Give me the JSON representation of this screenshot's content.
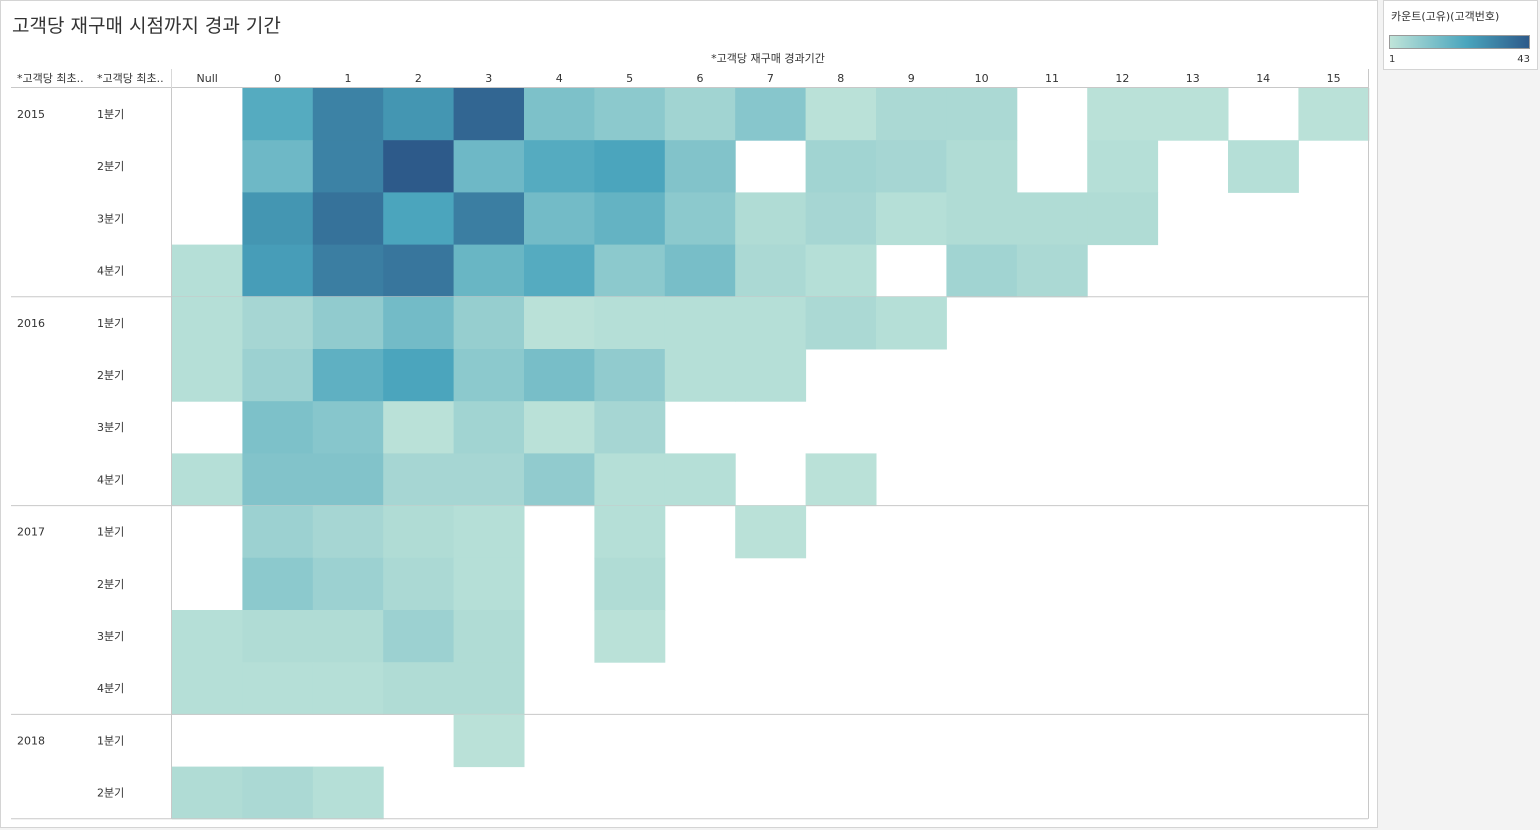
{
  "title": "고객당 재구매 시점까지 경과 기간",
  "legend": {
    "title": "카운트(고유)(고객번호)",
    "min_label": "1",
    "max_label": "43",
    "color_low": "#bfe4d9",
    "color_mid": "#4aa5bd",
    "color_high": "#2d5a8a"
  },
  "chart_data": {
    "type": "heatmap",
    "title": "고객당 재구매 시점까지 경과 기간",
    "column_axis_label": "*고객당 재구매 경과기간",
    "row_header_labels": [
      "*고객당 최초..",
      "*고객당 최초.."
    ],
    "columns": [
      "Null",
      "0",
      "1",
      "2",
      "3",
      "4",
      "5",
      "6",
      "7",
      "8",
      "9",
      "10",
      "11",
      "12",
      "13",
      "14",
      "15"
    ],
    "value_range": [
      1,
      43
    ],
    "groups": [
      {
        "year": "2015",
        "rows": [
          {
            "label": "1분기",
            "values": [
              null,
              22,
              33,
              28,
              40,
              14,
              11,
              7,
              12,
              2,
              5,
              5,
              null,
              2,
              2,
              null,
              2
            ]
          },
          {
            "label": "2분기",
            "values": [
              null,
              17,
              33,
              43,
              17,
              22,
              24,
              13,
              null,
              7,
              6,
              4,
              null,
              3,
              null,
              3,
              null
            ]
          },
          {
            "label": "3분기",
            "values": [
              null,
              28,
              37,
              24,
              34,
              16,
              19,
              11,
              4,
              6,
              3,
              4,
              4,
              4,
              null,
              null,
              null
            ]
          },
          {
            "label": "4분기",
            "values": [
              3,
              26,
              34,
              36,
              18,
              22,
              11,
              15,
              5,
              3,
              null,
              7,
              5,
              null,
              null,
              null,
              null
            ]
          }
        ]
      },
      {
        "year": "2016",
        "rows": [
          {
            "label": "1분기",
            "values": [
              3,
              6,
              10,
              16,
              9,
              2,
              3,
              3,
              3,
              5,
              3,
              null,
              null,
              null,
              null,
              null,
              null
            ]
          },
          {
            "label": "2분기",
            "values": [
              3,
              8,
              20,
              24,
              11,
              15,
              10,
              3,
              3,
              null,
              null,
              null,
              null,
              null,
              null,
              null,
              null
            ]
          },
          {
            "label": "3분기",
            "values": [
              null,
              14,
              12,
              2,
              7,
              2,
              6,
              null,
              null,
              null,
              null,
              null,
              null,
              null,
              null,
              null,
              null
            ]
          },
          {
            "label": "4분기",
            "values": [
              3,
              13,
              13,
              6,
              6,
              10,
              3,
              3,
              null,
              2,
              null,
              null,
              null,
              null,
              null,
              null,
              null
            ]
          }
        ]
      },
      {
        "year": "2017",
        "rows": [
          {
            "label": "1분기",
            "values": [
              null,
              8,
              6,
              4,
              3,
              null,
              3,
              null,
              2,
              null,
              null,
              null,
              null,
              null,
              null,
              null,
              null
            ]
          },
          {
            "label": "2분기",
            "values": [
              null,
              11,
              8,
              5,
              3,
              null,
              4,
              null,
              null,
              null,
              null,
              null,
              null,
              null,
              null,
              null,
              null
            ]
          },
          {
            "label": "3분기",
            "values": [
              3,
              4,
              4,
              8,
              4,
              null,
              2,
              null,
              null,
              null,
              null,
              null,
              null,
              null,
              null,
              null,
              null
            ]
          },
          {
            "label": "4분기",
            "values": [
              3,
              3,
              3,
              4,
              4,
              null,
              null,
              null,
              null,
              null,
              null,
              null,
              null,
              null,
              null,
              null,
              null
            ]
          }
        ]
      },
      {
        "year": "2018",
        "rows": [
          {
            "label": "1분기",
            "values": [
              null,
              null,
              null,
              null,
              2,
              null,
              null,
              null,
              null,
              null,
              null,
              null,
              null,
              null,
              null,
              null,
              null
            ]
          },
          {
            "label": "2분기",
            "values": [
              4,
              5,
              3,
              null,
              null,
              null,
              null,
              null,
              null,
              null,
              null,
              null,
              null,
              null,
              null,
              null,
              null
            ]
          }
        ]
      }
    ]
  }
}
